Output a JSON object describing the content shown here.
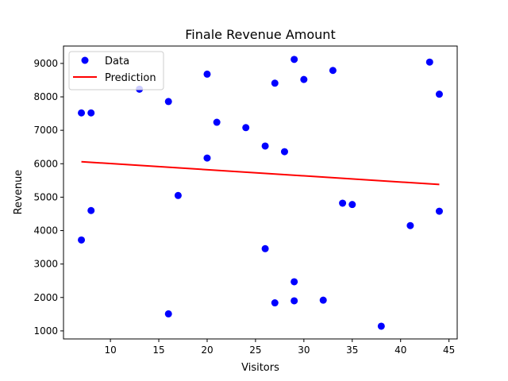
{
  "chart_data": {
    "type": "scatter",
    "title": "Finale Revenue Amount",
    "xlabel": "Visitors",
    "ylabel": "Revenue",
    "xlim": [
      5.15,
      45.85
    ],
    "ylim": [
      760,
      9520
    ],
    "xticks": [
      10,
      15,
      20,
      25,
      30,
      35,
      40,
      45
    ],
    "yticks": [
      1000,
      2000,
      3000,
      4000,
      5000,
      6000,
      7000,
      8000,
      9000
    ],
    "grid": false,
    "legend_position": "top-left",
    "series": [
      {
        "name": "Data",
        "type": "scatter",
        "color": "#0000ff",
        "x": [
          7,
          7,
          8,
          8,
          13,
          16,
          16,
          17,
          20,
          20,
          21,
          24,
          26,
          26,
          27,
          27,
          28,
          29,
          29,
          29,
          30,
          32,
          33,
          34,
          35,
          38,
          41,
          43,
          44,
          44
        ],
        "y": [
          7520,
          3720,
          7520,
          4600,
          8230,
          7860,
          1510,
          5050,
          8680,
          6170,
          7240,
          7080,
          6530,
          3460,
          8410,
          1840,
          6360,
          9120,
          2470,
          1900,
          8520,
          1920,
          8790,
          4820,
          4780,
          1140,
          4150,
          9040,
          8080,
          4580
        ]
      },
      {
        "name": "Prediction",
        "type": "line",
        "color": "#ff0000",
        "x": [
          7,
          44
        ],
        "y": [
          6060,
          5380
        ]
      }
    ]
  }
}
